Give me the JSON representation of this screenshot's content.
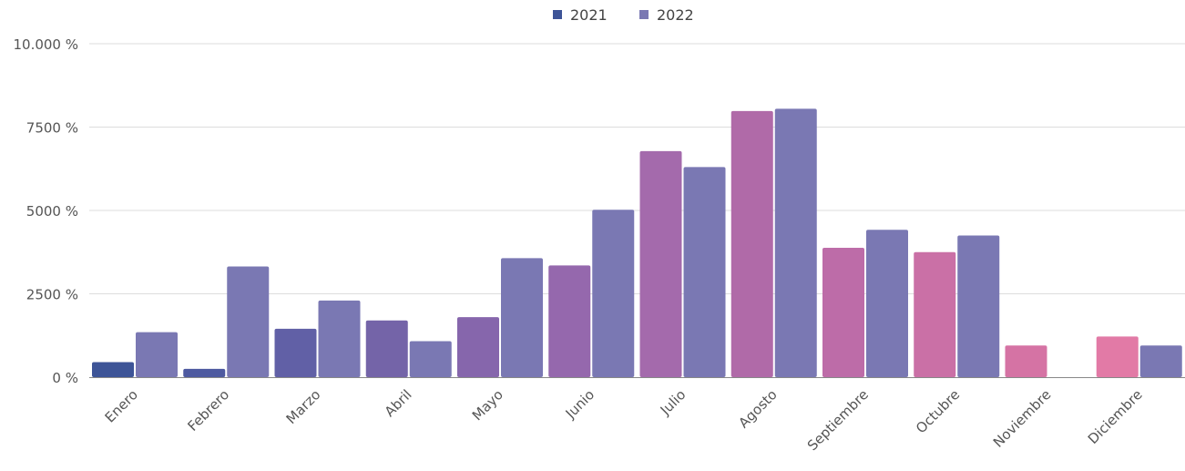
{
  "chart_data": {
    "type": "bar",
    "title": "",
    "xlabel": "",
    "ylabel": "",
    "ylim": [
      0,
      10000
    ],
    "yticks": [
      0,
      2500,
      5000,
      7500,
      10000
    ],
    "ytick_labels": [
      "0 %",
      "2500 %",
      "5000 %",
      "7500 %",
      "10.000 %"
    ],
    "grid": true,
    "legend_position": "top-center",
    "categories": [
      "Enero",
      "Febrero",
      "Marzo",
      "Abril",
      "Mayo",
      "Junio",
      "Julio",
      "Agosto",
      "Septiembre",
      "Octubre",
      "Noviembre",
      "Diciembre"
    ],
    "series": [
      {
        "name": "2021",
        "legend_color": "#3d5497",
        "colors": [
          "#3d5497",
          "#4e5aa0",
          "#6160a6",
          "#7464a8",
          "#8666ac",
          "#9568ad",
          "#a46aac",
          "#b06aa8",
          "#bd6ca8",
          "#ca70a6",
          "#d573a4",
          "#e27aa6"
        ],
        "values": [
          450,
          250,
          1450,
          1700,
          1800,
          3350,
          6780,
          7980,
          3880,
          3750,
          950,
          1220
        ]
      },
      {
        "name": "2022",
        "legend_color": "#7a78b3",
        "colors": [
          "#7a78b3",
          "#7a78b3",
          "#7a78b3",
          "#7a78b3",
          "#7a78b3",
          "#7a78b3",
          "#7a78b3",
          "#7a78b3",
          "#7a78b3",
          "#7a78b3",
          "#7a78b3",
          "#7a78b3"
        ],
        "values": [
          1350,
          3320,
          2300,
          1080,
          3570,
          5020,
          6300,
          8050,
          4420,
          4250,
          0,
          950
        ]
      }
    ]
  }
}
